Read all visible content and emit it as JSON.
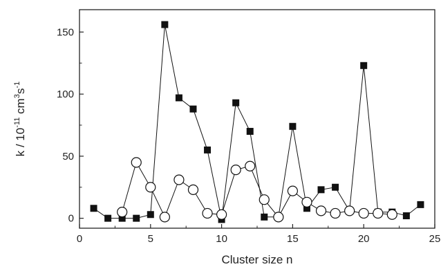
{
  "chart_data": {
    "type": "scatter",
    "title": "",
    "xlabel": "Cluster size n",
    "ylabel_parts": {
      "base": "k / 10",
      "exp1": "-11",
      "mid": " cm",
      "exp2": "3",
      "mid2": "s",
      "exp3": "-1"
    },
    "xlim": [
      0,
      25
    ],
    "ylim": [
      -8,
      168
    ],
    "x_ticks": [
      0,
      5,
      10,
      15,
      20,
      25
    ],
    "y_ticks": [
      0,
      50,
      100,
      150
    ],
    "grid": false,
    "legend": "none",
    "series": [
      {
        "marker": "filled-square",
        "color": "#111111",
        "x": [
          1,
          2,
          3,
          4,
          5,
          6,
          7,
          8,
          9,
          10,
          11,
          12,
          13,
          14,
          15,
          16,
          17,
          18,
          19,
          20,
          21,
          22,
          23,
          24
        ],
        "y": [
          8,
          0,
          0,
          0,
          3,
          156,
          97,
          88,
          55,
          -1,
          93,
          70,
          1,
          1,
          74,
          8,
          23,
          25,
          6,
          123,
          5,
          5,
          2,
          11
        ]
      },
      {
        "marker": "open-circle",
        "color": "#111111",
        "x": [
          3,
          4,
          5,
          6,
          7,
          8,
          9,
          10,
          11,
          12,
          13,
          14,
          15,
          16,
          17,
          18,
          19,
          20,
          21,
          22
        ],
        "y": [
          5,
          45,
          25,
          1,
          31,
          23,
          4,
          3,
          39,
          42,
          15,
          1,
          22,
          13,
          6,
          4,
          6,
          4,
          4,
          3
        ]
      }
    ]
  }
}
